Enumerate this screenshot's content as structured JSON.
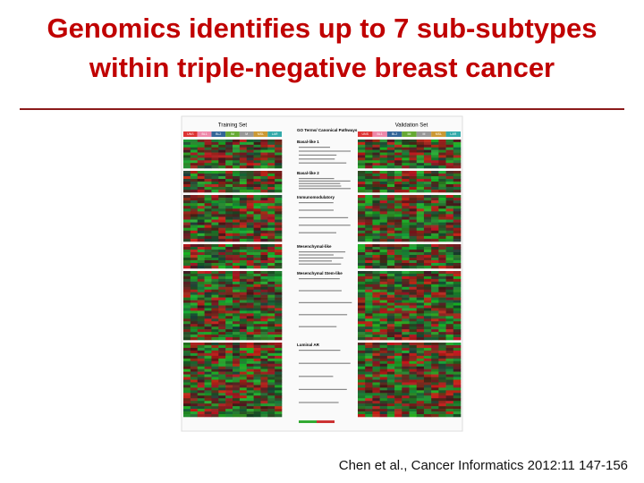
{
  "header": {
    "title": [
      "Genomics identifies up to 7 sub-subtypes",
      "within triple-negative breast cancer"
    ]
  },
  "figure": {
    "training_label": "Training Set",
    "validation_label": "Validation Set",
    "column_header": "GO Terms/ Canonical Pathways",
    "subtypes": [
      "UNS",
      "BL1",
      "BL2",
      "IM",
      "M",
      "MSL",
      "LAR"
    ],
    "sections": [
      "Basal-like 1",
      "Basal-like 2",
      "Immunomodulatory",
      "Mesenchymal-like",
      "Mesenchymal Stem-like",
      "Luminal AR"
    ]
  },
  "citation": "Chen et al., Cancer Informatics 2012:11 147-156"
}
